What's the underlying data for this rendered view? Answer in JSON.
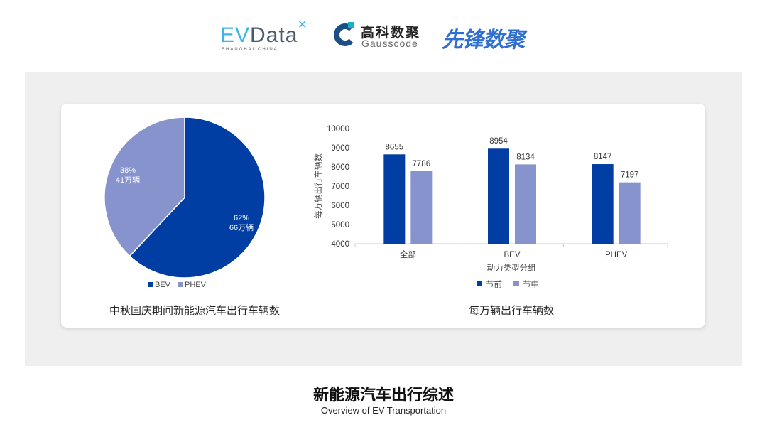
{
  "logos": {
    "evdata": "EVData",
    "evdata_sub": "SHANGHAI CHINA",
    "gauss_cn": "高科数聚",
    "gauss_en": "Gausscode",
    "xianfeng": "先锋数聚"
  },
  "footer": {
    "title": "新能源汽车出行综述",
    "subtitle": "Overview of EV Transportation"
  },
  "colors": {
    "dark": "#003ea4",
    "light": "#8793cd"
  },
  "chart_data": [
    {
      "type": "pie",
      "title": "中秋国庆期间新能源汽车出行车辆数",
      "slices": [
        {
          "name": "BEV",
          "percent": 62,
          "value_label": "66万辆",
          "pct_label": "62%"
        },
        {
          "name": "PHEV",
          "percent": 38,
          "value_label": "41万辆",
          "pct_label": "38%"
        }
      ],
      "legend": "bottom"
    },
    {
      "type": "bar",
      "title": "每万辆出行车辆数",
      "xlabel": "动力类型分组",
      "ylabel": "每万辆出行车辆数",
      "categories": [
        "全部",
        "BEV",
        "PHEV"
      ],
      "series": [
        {
          "name": "节前",
          "values": [
            8655,
            8954,
            8147
          ]
        },
        {
          "name": "节中",
          "values": [
            7786,
            8134,
            7197
          ]
        }
      ],
      "ylim": [
        4000,
        10000
      ],
      "yticks": [
        4000,
        5000,
        6000,
        7000,
        8000,
        9000,
        10000
      ],
      "grid": false,
      "legend": "bottom"
    }
  ]
}
